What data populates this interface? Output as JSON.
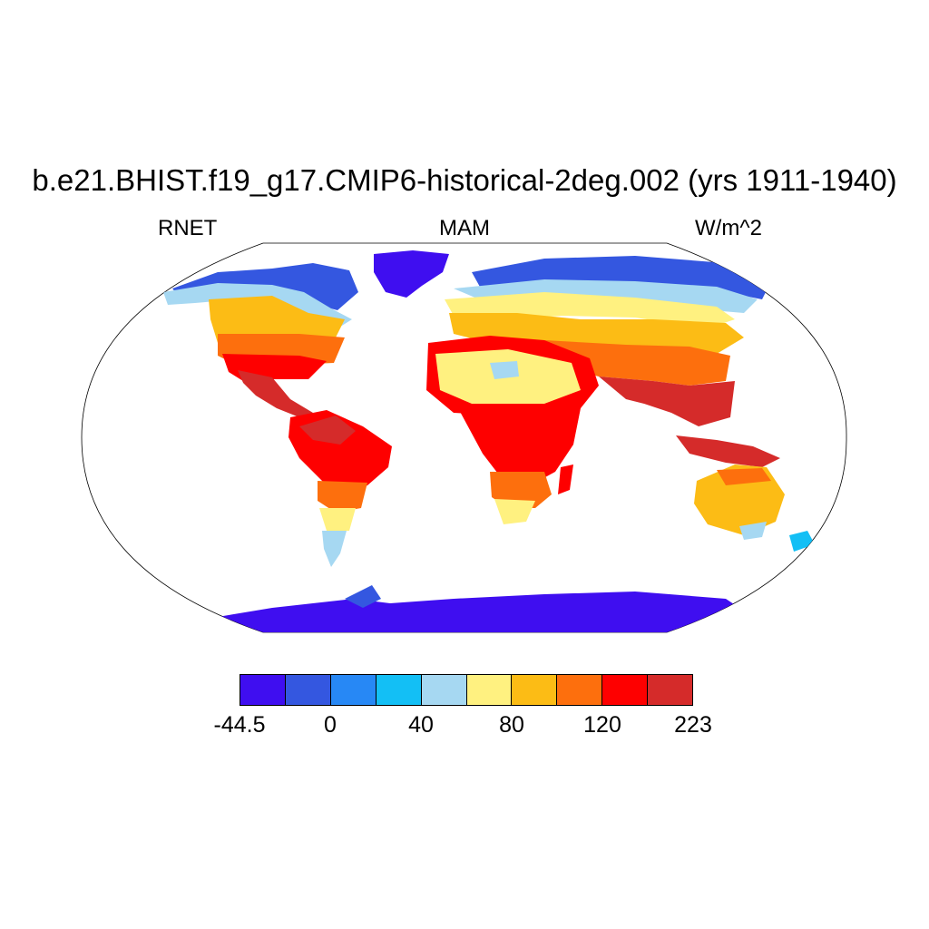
{
  "title": "b.e21.BHIST.f19_g17.CMIP6-historical-2deg.002 (yrs 1911-1940)",
  "subtitle": {
    "left": "RNET",
    "center": "MAM",
    "right": "W/m^2"
  },
  "colorbar": {
    "colors": [
      "#3f0ef0",
      "#3457e0",
      "#2788f5",
      "#13bff5",
      "#a6d8f2",
      "#fff180",
      "#fcbc15",
      "#fd6f0d",
      "#fe0000",
      "#d52b2a"
    ],
    "labels": [
      "-44.5",
      "0",
      "40",
      "80",
      "120",
      "223"
    ]
  },
  "map": {
    "projection": "robinson",
    "variable": "RNET",
    "season": "MAM",
    "units": "W/m^2"
  }
}
